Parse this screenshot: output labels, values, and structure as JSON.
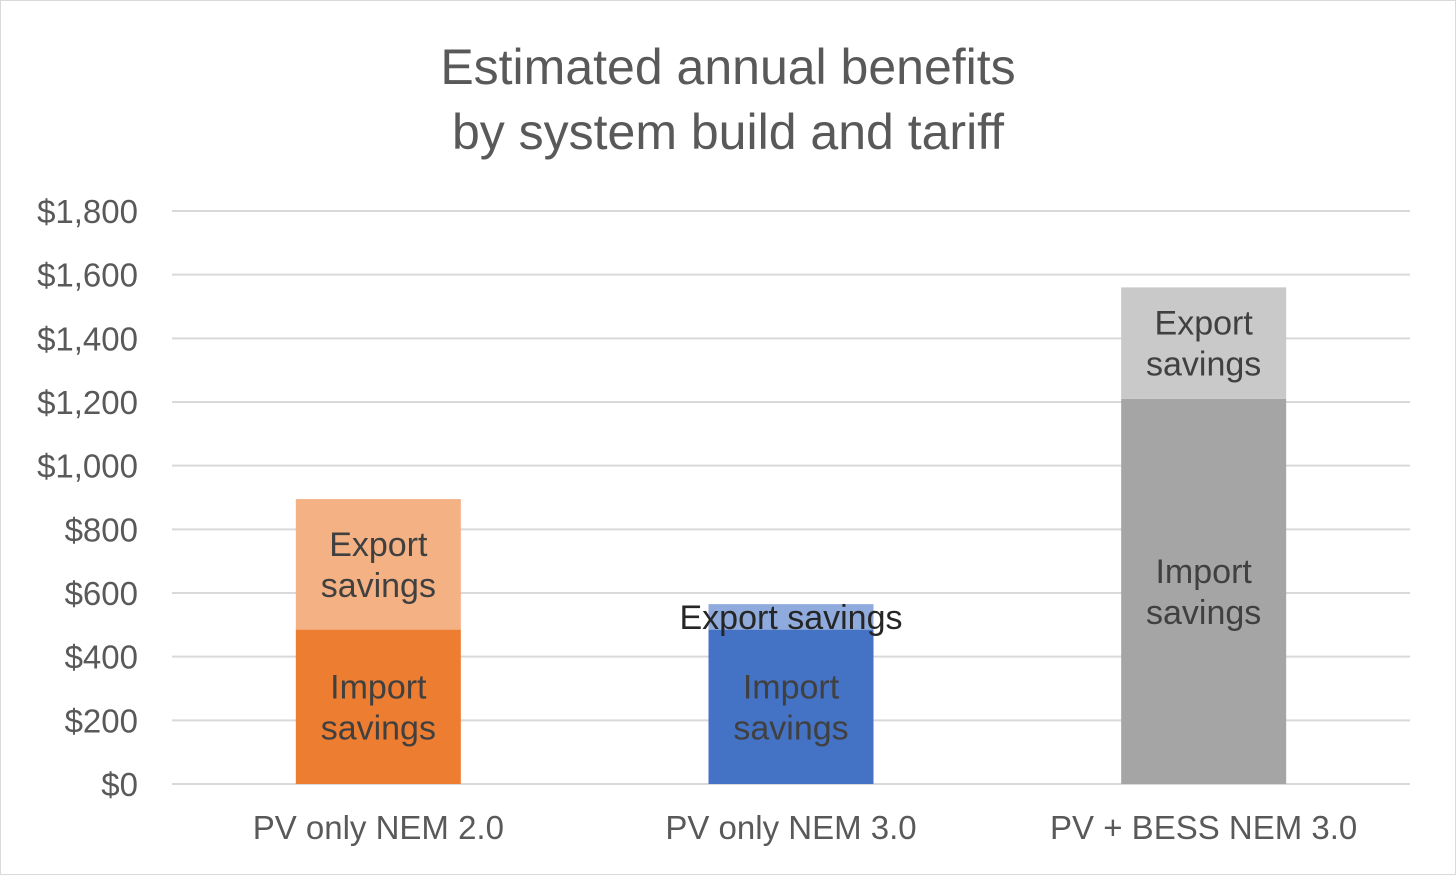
{
  "chart_data": {
    "type": "bar",
    "stacked": true,
    "title": [
      "Estimated annual benefits",
      "by system build and tariff"
    ],
    "xlabel": "",
    "ylabel": "",
    "ylim": [
      0,
      1800
    ],
    "yticks": [
      0,
      200,
      400,
      600,
      800,
      1000,
      1200,
      1400,
      1600,
      1800
    ],
    "ytick_labels": [
      "$0",
      "$200",
      "$400",
      "$600",
      "$800",
      "$1,000",
      "$1,200",
      "$1,400",
      "$1,600",
      "$1,800"
    ],
    "grid": true,
    "legend": "none",
    "categories": [
      "PV only NEM 2.0",
      "PV only NEM 3.0",
      "PV + BESS NEM 3.0"
    ],
    "series": [
      {
        "role": "import",
        "values": [
          485,
          485,
          1210
        ],
        "colors": [
          "#ed7d31",
          "#4472c4",
          "#a5a5a5"
        ],
        "labels": [
          [
            "Import",
            "savings"
          ],
          [
            "Import",
            "savings"
          ],
          [
            "Import",
            "savings"
          ]
        ]
      },
      {
        "role": "export",
        "values": [
          410,
          80,
          350
        ],
        "colors": [
          "#f4b183",
          "#8faadc",
          "#c9c9c9"
        ],
        "labels": [
          [
            "Export",
            "savings"
          ],
          [
            "Export savings"
          ],
          [
            "Export",
            "savings"
          ]
        ]
      }
    ]
  }
}
